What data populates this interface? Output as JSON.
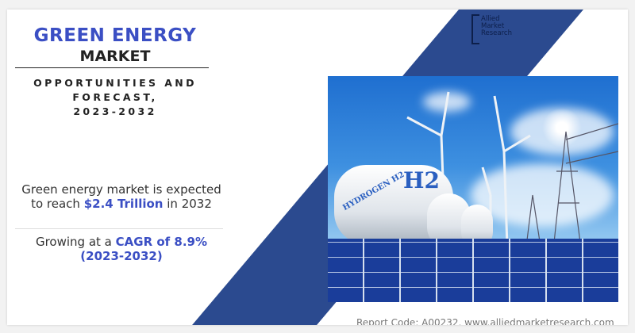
{
  "title": {
    "line1": "GREEN ENERGY",
    "line2": "MARKET"
  },
  "subtitle": {
    "line1": "OPPORTUNITIES AND",
    "line2": "FORECAST,",
    "line3": "2023-2032"
  },
  "stat1": {
    "prefix": "Green energy market is expected",
    "mid": "to reach",
    "value": "$2.4 Trillion",
    "suffix": "in 2032"
  },
  "stat2": {
    "prefix": "Growing at a",
    "value": "CAGR of 8.9%",
    "period": "(2023-2032)"
  },
  "logo": {
    "line1": "Allied",
    "line2": "Market",
    "line3": "Research"
  },
  "photo": {
    "tank_label": "HYDROGEN H2",
    "h2": "H2"
  },
  "footer": "Report Code: A00232, www.alliedmarketresearch.com",
  "colors": {
    "accent": "#3b4fc4",
    "band": "#2b4a8f"
  }
}
